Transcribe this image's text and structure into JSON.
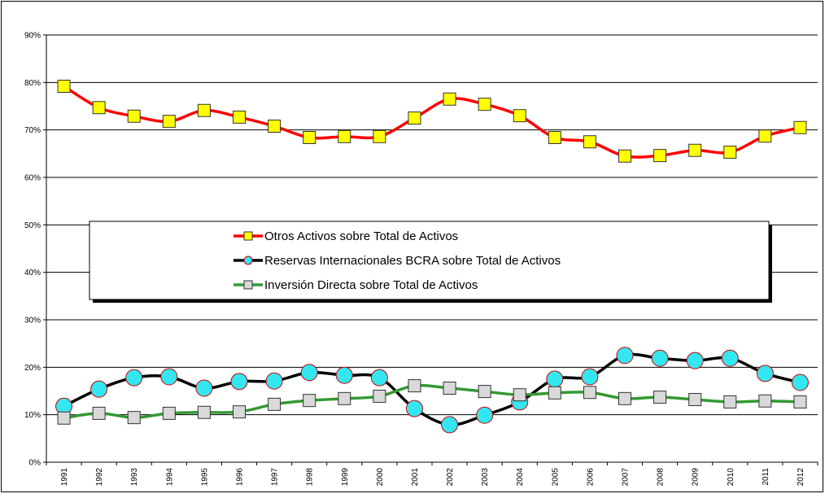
{
  "chart_data": {
    "type": "line",
    "categories": [
      "1991",
      "1992",
      "1993",
      "1994",
      "1995",
      "1996",
      "1997",
      "1998",
      "1999",
      "2000",
      "2001",
      "2002",
      "2003",
      "2004",
      "2005",
      "2006",
      "2007",
      "2008",
      "2009",
      "2010",
      "2011",
      "2012"
    ],
    "series": [
      {
        "name": "Otros Activos sobre Total de Activos",
        "color": "#ff0000",
        "marker": "square",
        "marker_color": "#ffff00",
        "values": [
          79.2,
          74.7,
          72.9,
          71.8,
          74.1,
          72.7,
          70.8,
          68.4,
          68.6,
          68.6,
          72.5,
          76.5,
          75.4,
          73.0,
          68.4,
          67.5,
          64.5,
          64.6,
          65.7,
          65.3,
          68.7,
          70.5
        ]
      },
      {
        "name": "Reservas Internacionales BCRA sobre Total de Activos",
        "color": "#000000",
        "marker": "circle",
        "marker_color": "#33e6f0",
        "values": [
          11.8,
          15.4,
          17.8,
          18.0,
          15.6,
          17.0,
          17.1,
          18.9,
          18.3,
          17.8,
          11.3,
          7.9,
          9.9,
          12.7,
          17.5,
          18.0,
          22.5,
          21.9,
          21.4,
          21.9,
          18.7,
          16.8
        ]
      },
      {
        "name": "Inversión Directa sobre Total de Activos",
        "color": "#339933",
        "marker": "square",
        "marker_color": "#d9d9d9",
        "values": [
          9.3,
          10.3,
          9.4,
          10.3,
          10.5,
          10.6,
          12.2,
          13.0,
          13.4,
          13.9,
          16.1,
          15.6,
          14.9,
          14.2,
          14.6,
          14.7,
          13.4,
          13.7,
          13.2,
          12.7,
          12.9,
          12.7
        ]
      }
    ],
    "ylim": [
      0,
      90
    ],
    "yticks": [
      {
        "value": 0,
        "label": "0%"
      },
      {
        "value": 10,
        "label": "10%"
      },
      {
        "value": 20,
        "label": "20%"
      },
      {
        "value": 30,
        "label": "30%"
      },
      {
        "value": 40,
        "label": "40%"
      },
      {
        "value": 50,
        "label": "50%"
      },
      {
        "value": 60,
        "label": "60%"
      },
      {
        "value": 70,
        "label": "70%"
      },
      {
        "value": 80,
        "label": "80%"
      },
      {
        "value": 90,
        "label": "90%"
      }
    ],
    "grid": true,
    "legend": "center"
  }
}
